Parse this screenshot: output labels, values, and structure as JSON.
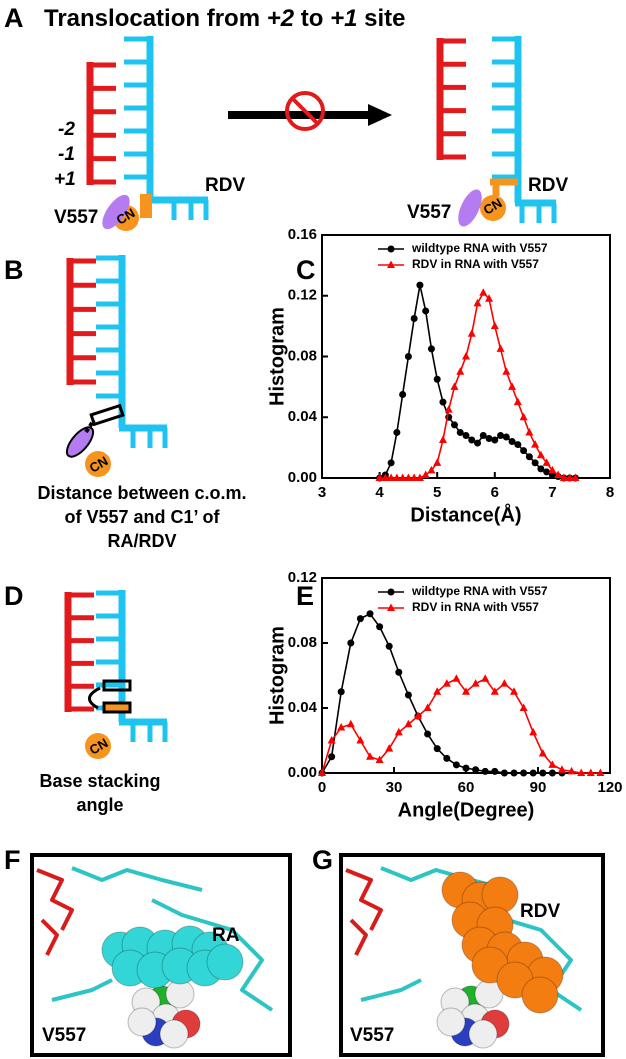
{
  "panel_labels": [
    "A",
    "B",
    "C",
    "D",
    "E",
    "F",
    "G"
  ],
  "panel_a": {
    "title": [
      "Translocation from ",
      "+2",
      " to ",
      "+1",
      " site"
    ],
    "strand_labels": [
      "-2",
      "-1",
      "+1"
    ],
    "residue": "V557",
    "ligand": "RDV",
    "group": "CN"
  },
  "panel_b": {
    "caption": [
      "Distance between c.o.m.",
      "of V557 and C1’ of",
      "RA/RDV"
    ],
    "group": "CN"
  },
  "panel_d": {
    "caption": [
      "Base stacking",
      "angle"
    ],
    "group": "CN"
  },
  "panel_f": {
    "labels": [
      "RA",
      "V557"
    ]
  },
  "panel_g": {
    "labels": [
      "RDV",
      "V557"
    ]
  },
  "chart_data": [
    {
      "type": "line",
      "x_label": "Distance(Å)",
      "y_label": "Histogram",
      "x": [
        4.0,
        4.1,
        4.2,
        4.3,
        4.4,
        4.5,
        4.6,
        4.7,
        4.8,
        4.9,
        5.0,
        5.1,
        5.2,
        5.3,
        5.4,
        5.5,
        5.6,
        5.7,
        5.8,
        5.9,
        6.0,
        6.1,
        6.2,
        6.3,
        6.4,
        6.5,
        6.6,
        6.7,
        6.8,
        6.9,
        7.0,
        7.1,
        7.2,
        7.3,
        7.4
      ],
      "series": [
        {
          "name": "wildtype RNA with V557",
          "color": "#000000",
          "marker": "circle",
          "values": [
            0,
            0.002,
            0.01,
            0.03,
            0.055,
            0.08,
            0.105,
            0.127,
            0.11,
            0.085,
            0.065,
            0.05,
            0.04,
            0.035,
            0.03,
            0.028,
            0.025,
            0.023,
            0.028,
            0.026,
            0.025,
            0.028,
            0.027,
            0.024,
            0.022,
            0.018,
            0.014,
            0.01,
            0.006,
            0.004,
            0.002,
            0.001,
            0,
            0,
            0
          ]
        },
        {
          "name": "RDV in RNA with V557",
          "color": "#ff0000",
          "marker": "triangle",
          "values": [
            0,
            0,
            0,
            0,
            0,
            0,
            0,
            0,
            0.002,
            0.005,
            0.01,
            0.025,
            0.045,
            0.06,
            0.07,
            0.08,
            0.095,
            0.115,
            0.122,
            0.118,
            0.1,
            0.085,
            0.07,
            0.06,
            0.05,
            0.04,
            0.03,
            0.022,
            0.015,
            0.01,
            0.005,
            0.002,
            0,
            0,
            0
          ]
        }
      ],
      "xlim": [
        3,
        8
      ],
      "xticks": [
        3,
        4,
        5,
        6,
        7,
        8
      ],
      "ylim": [
        0,
        0.16
      ],
      "yticks": [
        {
          "value": 0,
          "label": "0.00"
        },
        {
          "value": 0.04,
          "label": "0.04"
        },
        {
          "value": 0.08,
          "label": "0.08"
        },
        {
          "value": 0.12,
          "label": "0.12"
        },
        {
          "value": 0.16,
          "label": "0.16"
        }
      ],
      "legend": "upper right"
    },
    {
      "type": "line",
      "x_label": "Angle(Degree)",
      "y_label": "Histogram",
      "x": [
        0,
        4,
        8,
        12,
        16,
        20,
        24,
        28,
        32,
        36,
        40,
        44,
        48,
        52,
        56,
        60,
        64,
        68,
        72,
        76,
        80,
        84,
        88,
        92,
        96,
        100,
        104,
        108,
        112,
        116
      ],
      "series": [
        {
          "name": "wildtype RNA with V557",
          "color": "#000000",
          "marker": "circle",
          "values": [
            0,
            0.01,
            0.05,
            0.08,
            0.095,
            0.098,
            0.09,
            0.078,
            0.062,
            0.048,
            0.035,
            0.024,
            0.015,
            0.009,
            0.005,
            0.003,
            0.002,
            0.001,
            0.001,
            0,
            0,
            0,
            0,
            0,
            0,
            0,
            null,
            null,
            null,
            null
          ]
        },
        {
          "name": "RDV in RNA with V557",
          "color": "#ff0000",
          "marker": "triangle",
          "values": [
            0,
            0.02,
            0.028,
            0.03,
            0.02,
            0.01,
            0.008,
            0.015,
            0.025,
            0.03,
            0.035,
            0.04,
            0.05,
            0.055,
            0.058,
            0.05,
            0.055,
            0.058,
            0.05,
            0.055,
            0.05,
            0.04,
            0.025,
            0.012,
            0.005,
            0.002,
            0.001,
            0,
            0,
            0
          ]
        }
      ],
      "xlim": [
        0,
        120
      ],
      "xticks": [
        0,
        30,
        60,
        90,
        120
      ],
      "ylim": [
        0,
        0.12
      ],
      "yticks": [
        {
          "value": 0,
          "label": "0.00"
        },
        {
          "value": 0.04,
          "label": "0.04"
        },
        {
          "value": 0.08,
          "label": "0.08"
        },
        {
          "value": 0.12,
          "label": "0.12"
        }
      ],
      "legend": "upper right"
    }
  ]
}
